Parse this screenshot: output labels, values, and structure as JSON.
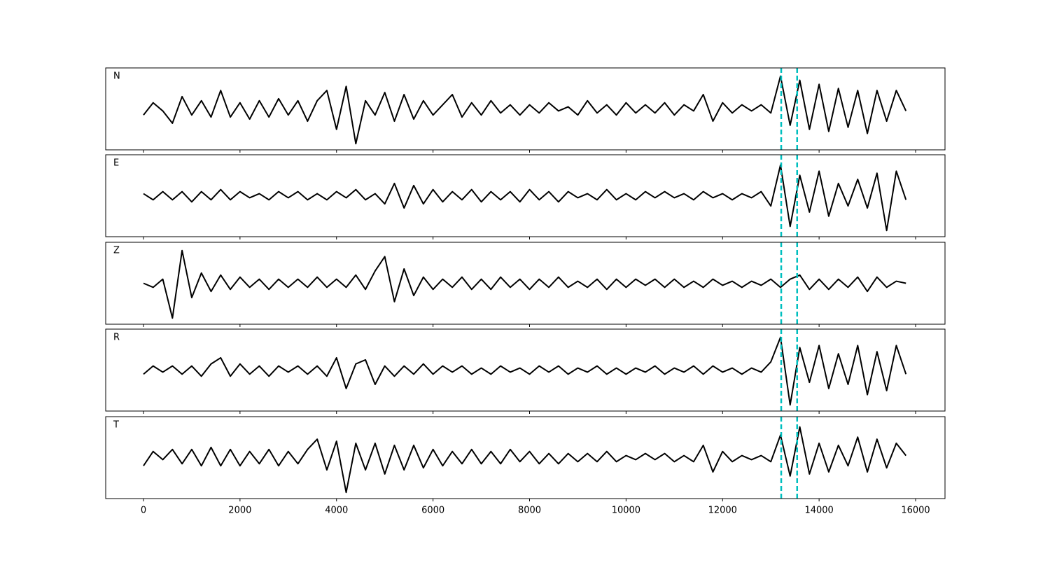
{
  "chart_data": {
    "type": "line",
    "x": [
      0,
      200,
      400,
      600,
      800,
      1000,
      1200,
      1400,
      1600,
      1800,
      2000,
      2200,
      2400,
      2600,
      2800,
      3000,
      3200,
      3400,
      3600,
      3800,
      4000,
      4200,
      4400,
      4600,
      4800,
      5000,
      5200,
      5400,
      5600,
      5800,
      6000,
      6200,
      6400,
      6600,
      6800,
      7000,
      7200,
      7400,
      7600,
      7800,
      8000,
      8200,
      8400,
      8600,
      8800,
      9000,
      9200,
      9400,
      9600,
      9800,
      10000,
      10200,
      10400,
      10600,
      10800,
      11000,
      11200,
      11400,
      11600,
      11800,
      12000,
      12200,
      12400,
      12600,
      12800,
      13000,
      13200,
      13400,
      13600,
      13800,
      14000,
      14200,
      14400,
      14600,
      14800,
      15000,
      15200,
      15400,
      15600,
      15800
    ],
    "series": [
      {
        "name": "N",
        "color": "#000000",
        "values": [
          -0.15,
          0.15,
          -0.05,
          -0.35,
          0.3,
          -0.15,
          0.2,
          -0.2,
          0.45,
          -0.2,
          0.15,
          -0.25,
          0.2,
          -0.2,
          0.25,
          -0.15,
          0.2,
          -0.3,
          0.2,
          0.45,
          -0.5,
          0.55,
          -0.85,
          0.2,
          -0.15,
          0.4,
          -0.3,
          0.35,
          -0.25,
          0.2,
          -0.15,
          0.1,
          0.35,
          -0.2,
          0.15,
          -0.15,
          0.2,
          -0.1,
          0.1,
          -0.15,
          0.1,
          -0.1,
          0.15,
          -0.05,
          0.05,
          -0.15,
          0.2,
          -0.1,
          0.1,
          -0.15,
          0.15,
          -0.1,
          0.1,
          -0.1,
          0.15,
          -0.15,
          0.1,
          -0.05,
          0.35,
          -0.3,
          0.15,
          -0.1,
          0.1,
          -0.05,
          0.1,
          -0.1,
          0.8,
          -0.4,
          0.7,
          -0.5,
          0.6,
          -0.55,
          0.5,
          -0.45,
          0.45,
          -0.6,
          0.45,
          -0.3,
          0.45,
          -0.05
        ]
      },
      {
        "name": "E",
        "color": "#000000",
        "values": [
          0.05,
          -0.1,
          0.1,
          -0.1,
          0.1,
          -0.15,
          0.1,
          -0.1,
          0.15,
          -0.1,
          0.1,
          -0.05,
          0.05,
          -0.1,
          0.1,
          -0.05,
          0.1,
          -0.1,
          0.05,
          -0.1,
          0.1,
          -0.05,
          0.15,
          -0.1,
          0.05,
          -0.2,
          0.3,
          -0.3,
          0.25,
          -0.2,
          0.15,
          -0.15,
          0.1,
          -0.1,
          0.15,
          -0.15,
          0.1,
          -0.1,
          0.1,
          -0.15,
          0.15,
          -0.1,
          0.1,
          -0.15,
          0.1,
          -0.05,
          0.05,
          -0.1,
          0.15,
          -0.1,
          0.05,
          -0.1,
          0.1,
          -0.05,
          0.1,
          -0.05,
          0.05,
          -0.1,
          0.1,
          -0.05,
          0.05,
          -0.1,
          0.05,
          -0.05,
          0.1,
          -0.25,
          0.75,
          -0.75,
          0.5,
          -0.4,
          0.6,
          -0.5,
          0.3,
          -0.25,
          0.4,
          -0.3,
          0.55,
          -0.85,
          0.6,
          -0.1
        ]
      },
      {
        "name": "Z",
        "color": "#000000",
        "values": [
          0.0,
          -0.1,
          0.1,
          -0.85,
          0.8,
          -0.35,
          0.25,
          -0.2,
          0.2,
          -0.15,
          0.15,
          -0.1,
          0.1,
          -0.15,
          0.1,
          -0.1,
          0.1,
          -0.1,
          0.15,
          -0.1,
          0.1,
          -0.1,
          0.2,
          -0.15,
          0.3,
          0.65,
          -0.45,
          0.35,
          -0.3,
          0.15,
          -0.15,
          0.1,
          -0.1,
          0.15,
          -0.15,
          0.1,
          -0.15,
          0.15,
          -0.1,
          0.1,
          -0.15,
          0.1,
          -0.1,
          0.15,
          -0.1,
          0.05,
          -0.1,
          0.1,
          -0.15,
          0.1,
          -0.1,
          0.1,
          -0.05,
          0.1,
          -0.1,
          0.1,
          -0.1,
          0.05,
          -0.1,
          0.1,
          -0.05,
          0.05,
          -0.1,
          0.05,
          -0.05,
          0.1,
          -0.1,
          0.1,
          0.2,
          -0.15,
          0.1,
          -0.15,
          0.1,
          -0.1,
          0.15,
          -0.2,
          0.15,
          -0.1,
          0.05,
          0.0
        ]
      },
      {
        "name": "R",
        "color": "#000000",
        "values": [
          -0.1,
          0.1,
          -0.05,
          0.1,
          -0.1,
          0.1,
          -0.15,
          0.15,
          0.3,
          -0.15,
          0.15,
          -0.1,
          0.1,
          -0.15,
          0.1,
          -0.05,
          0.1,
          -0.1,
          0.1,
          -0.15,
          0.3,
          -0.45,
          0.15,
          0.25,
          -0.35,
          0.1,
          -0.15,
          0.1,
          -0.1,
          0.15,
          -0.1,
          0.1,
          -0.05,
          0.1,
          -0.1,
          0.05,
          -0.1,
          0.1,
          -0.05,
          0.05,
          -0.1,
          0.1,
          -0.05,
          0.1,
          -0.1,
          0.05,
          -0.05,
          0.1,
          -0.1,
          0.05,
          -0.1,
          0.05,
          -0.05,
          0.1,
          -0.1,
          0.05,
          -0.05,
          0.1,
          -0.1,
          0.1,
          -0.05,
          0.05,
          -0.1,
          0.05,
          -0.05,
          0.2,
          0.8,
          -0.85,
          0.55,
          -0.3,
          0.6,
          -0.45,
          0.4,
          -0.35,
          0.6,
          -0.6,
          0.45,
          -0.5,
          0.6,
          -0.1
        ]
      },
      {
        "name": "T",
        "color": "#000000",
        "values": [
          -0.2,
          0.15,
          -0.05,
          0.2,
          -0.15,
          0.2,
          -0.2,
          0.25,
          -0.2,
          0.2,
          -0.2,
          0.15,
          -0.15,
          0.2,
          -0.2,
          0.15,
          -0.15,
          0.2,
          0.45,
          -0.3,
          0.4,
          -0.85,
          0.35,
          -0.3,
          0.35,
          -0.4,
          0.3,
          -0.3,
          0.3,
          -0.25,
          0.2,
          -0.2,
          0.15,
          -0.15,
          0.2,
          -0.15,
          0.15,
          -0.15,
          0.2,
          -0.1,
          0.15,
          -0.15,
          0.1,
          -0.15,
          0.1,
          -0.1,
          0.1,
          -0.1,
          0.15,
          -0.1,
          0.05,
          -0.05,
          0.1,
          -0.05,
          0.1,
          -0.1,
          0.05,
          -0.1,
          0.3,
          -0.35,
          0.15,
          -0.1,
          0.05,
          -0.05,
          0.05,
          -0.1,
          0.55,
          -0.45,
          0.75,
          -0.4,
          0.35,
          -0.35,
          0.3,
          -0.2,
          0.5,
          -0.35,
          0.45,
          -0.25,
          0.35,
          0.05
        ]
      }
    ],
    "xlim": [
      -783,
      16609
    ],
    "xticks": [
      0,
      2000,
      4000,
      6000,
      8000,
      10000,
      12000,
      14000,
      16000
    ],
    "ylim": [
      -1,
      1
    ],
    "vlines": [
      13215,
      13545
    ],
    "vline_color": "#00bfbf"
  }
}
